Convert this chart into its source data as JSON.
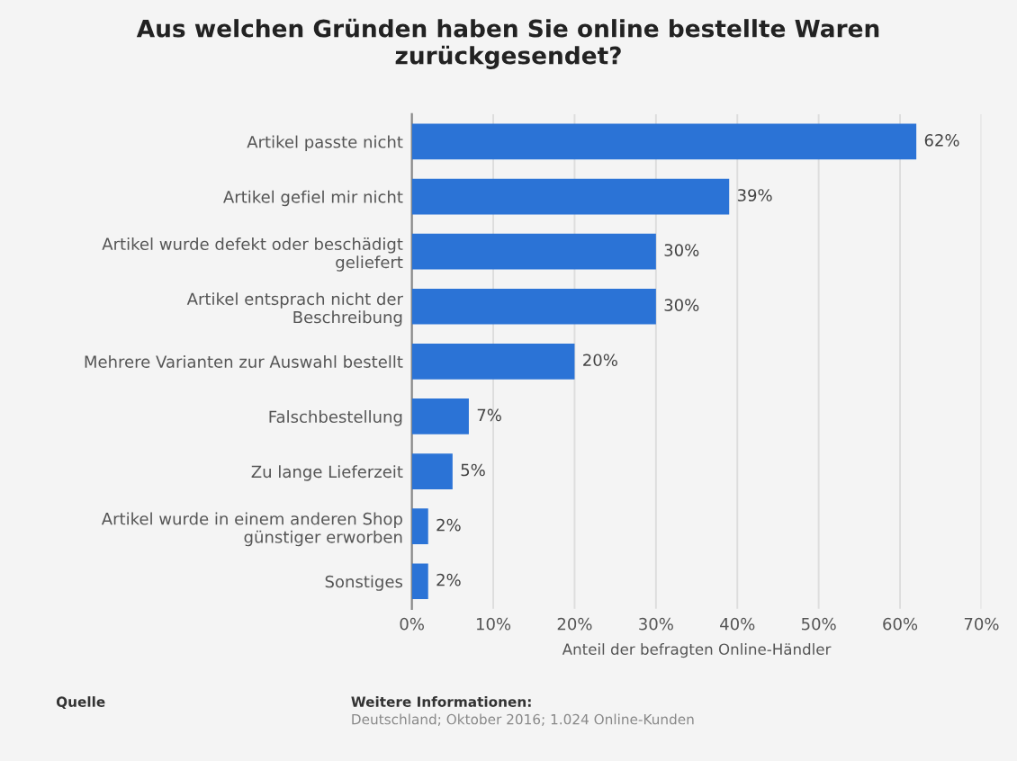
{
  "chart_data": {
    "type": "bar",
    "orientation": "horizontal",
    "title": "Aus welchen Gründen haben Sie online bestellte Waren\nzurückgesendet?",
    "xlabel": "Anteil der befragten Online-Händler",
    "categories": [
      "Artikel passte nicht",
      "Artikel gefiel mir nicht",
      "Artikel wurde defekt oder beschädigt\ngeliefert",
      "Artikel entsprach nicht der\nBeschreibung",
      "Mehrere Varianten zur Auswahl bestellt",
      "Falschbestellung",
      "Zu lange Lieferzeit",
      "Artikel wurde in einem anderen Shop\ngünstiger erworben",
      "Sonstiges"
    ],
    "values": [
      62,
      39,
      30,
      30,
      20,
      7,
      5,
      2,
      2
    ],
    "value_labels": [
      "62%",
      "39%",
      "30%",
      "30%",
      "20%",
      "7%",
      "5%",
      "2%",
      "2%"
    ],
    "color": "#2b73d6",
    "xlim": [
      0,
      70
    ],
    "xticks": [
      {
        "value": 0,
        "label": "0%"
      },
      {
        "value": 10,
        "label": "10%"
      },
      {
        "value": 20,
        "label": "20%"
      },
      {
        "value": 30,
        "label": "30%"
      },
      {
        "value": 40,
        "label": "40%"
      },
      {
        "value": 50,
        "label": "50%"
      },
      {
        "value": 60,
        "label": "60%"
      },
      {
        "value": 70,
        "label": "70%"
      }
    ],
    "grid": "x",
    "annotations": [
      "Quelle",
      "Weitere Informationen:",
      "Deutschland; Oktober 2016; 1.024 Online-Kunden"
    ]
  }
}
